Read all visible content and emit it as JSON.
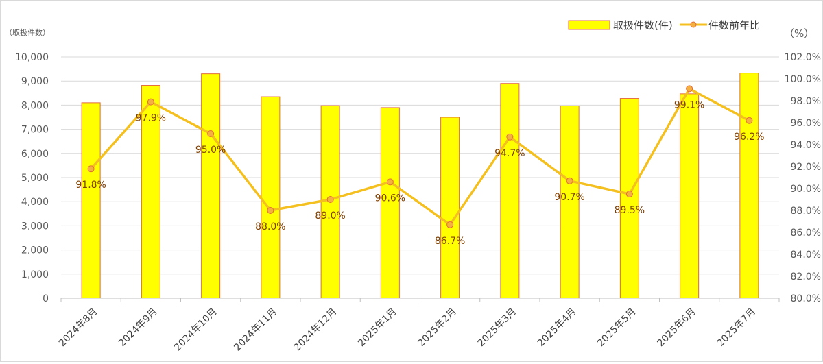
{
  "chart_data": {
    "type": "bar+line",
    "categories": [
      "2024年8月",
      "2024年9月",
      "2024年10月",
      "2024年11月",
      "2024年12月",
      "2025年1月",
      "2025年2月",
      "2025年3月",
      "2025年4月",
      "2025年5月",
      "2025年6月",
      "2025年7月"
    ],
    "series": [
      {
        "name": "取扱件数(件)",
        "type": "bar",
        "axis": "left",
        "values": [
          8100,
          8820,
          9300,
          8350,
          7980,
          7900,
          7500,
          8900,
          7970,
          8280,
          8470,
          9330
        ]
      },
      {
        "name": "件数前年比",
        "type": "line",
        "axis": "right",
        "values": [
          91.8,
          97.9,
          95.0,
          88.0,
          89.0,
          90.6,
          86.7,
          94.7,
          90.7,
          89.5,
          99.1,
          96.2
        ],
        "labels": [
          "91.8%",
          "97.9%",
          "95.0%",
          "88.0%",
          "89.0%",
          "90.6%",
          "86.7%",
          "94.7%",
          "90.7%",
          "89.5%",
          "99.1%",
          "96.2%"
        ]
      }
    ],
    "y_left": {
      "unit_label": "（取扱件数）",
      "ylim": [
        0,
        10000
      ],
      "ticks": [
        0,
        1000,
        2000,
        3000,
        4000,
        5000,
        6000,
        7000,
        8000,
        9000,
        10000
      ],
      "tick_labels": [
        "0",
        "1,000",
        "2,000",
        "3,000",
        "4,000",
        "5,000",
        "6,000",
        "7,000",
        "8,000",
        "9,000",
        "10,000"
      ]
    },
    "y_right": {
      "unit_label": "（%）",
      "ylim": [
        80,
        102
      ],
      "ticks": [
        80,
        82,
        84,
        86,
        88,
        90,
        92,
        94,
        96,
        98,
        100,
        102
      ],
      "tick_labels": [
        "80.0%",
        "82.0%",
        "84.0%",
        "86.0%",
        "88.0%",
        "90.0%",
        "92.0%",
        "94.0%",
        "96.0%",
        "98.0%",
        "100.0%",
        "102.0%"
      ]
    },
    "legend_position": "top-right",
    "grid": true,
    "colors": {
      "bar_fill": "#ffff00",
      "bar_stroke": "#e36c3a",
      "line": "#f4c020",
      "marker_fill": "#f4b040",
      "marker_stroke": "#e36c3a",
      "grid": "#d9d9d9"
    }
  }
}
